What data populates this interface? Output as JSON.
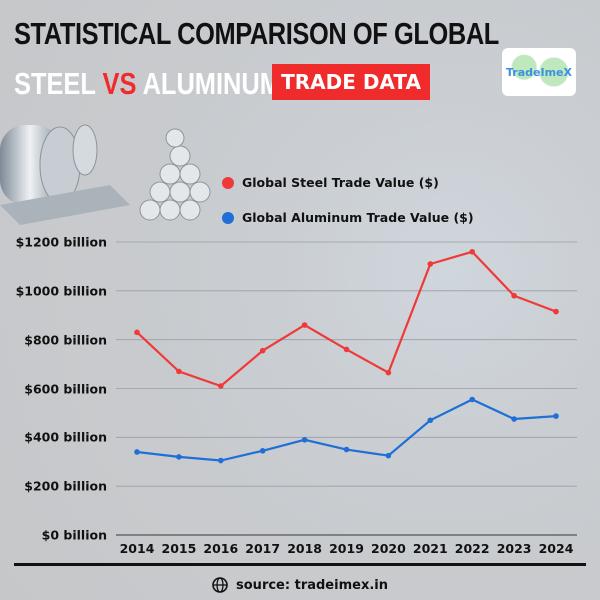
{
  "header": {
    "title_line1": "STATISTICAL COMPARISON OF GLOBAL",
    "title_steel": "STEEL ",
    "title_vs": "VS",
    "title_aluminum": " ALUMINUM",
    "badge": "TRADE DATA",
    "logo_text": "TradeImeX"
  },
  "footer": {
    "source": "source: tradeimex.in",
    "icon": "globe-icon"
  },
  "chart_data": {
    "type": "line",
    "title": "STATISTICAL COMPARISON OF GLOBAL STEEL VS ALUMINUM TRADE DATA",
    "categories": [
      "2014",
      "2015",
      "2016",
      "2017",
      "2018",
      "2019",
      "2020",
      "2021",
      "2022",
      "2023",
      "2024"
    ],
    "y_ticks": [
      "$0 billion",
      "$200 billion",
      "$400 billion",
      "$600 billion",
      "$800 billion",
      "$1000 billion",
      "$1200 billion"
    ],
    "ylim": [
      0,
      1200
    ],
    "y_unit": "billion USD",
    "grid": true,
    "legend_placement": "top",
    "series": [
      {
        "name": "Global Steel Trade Value ($)",
        "color": "#ef3a3a",
        "values": [
          830,
          670,
          610,
          755,
          860,
          760,
          665,
          1110,
          1160,
          980,
          915
        ]
      },
      {
        "name": "Global Aluminum Trade Value ($)",
        "color": "#1f6fd6",
        "values": [
          340,
          320,
          305,
          345,
          390,
          350,
          325,
          470,
          555,
          475,
          487
        ]
      }
    ]
  }
}
